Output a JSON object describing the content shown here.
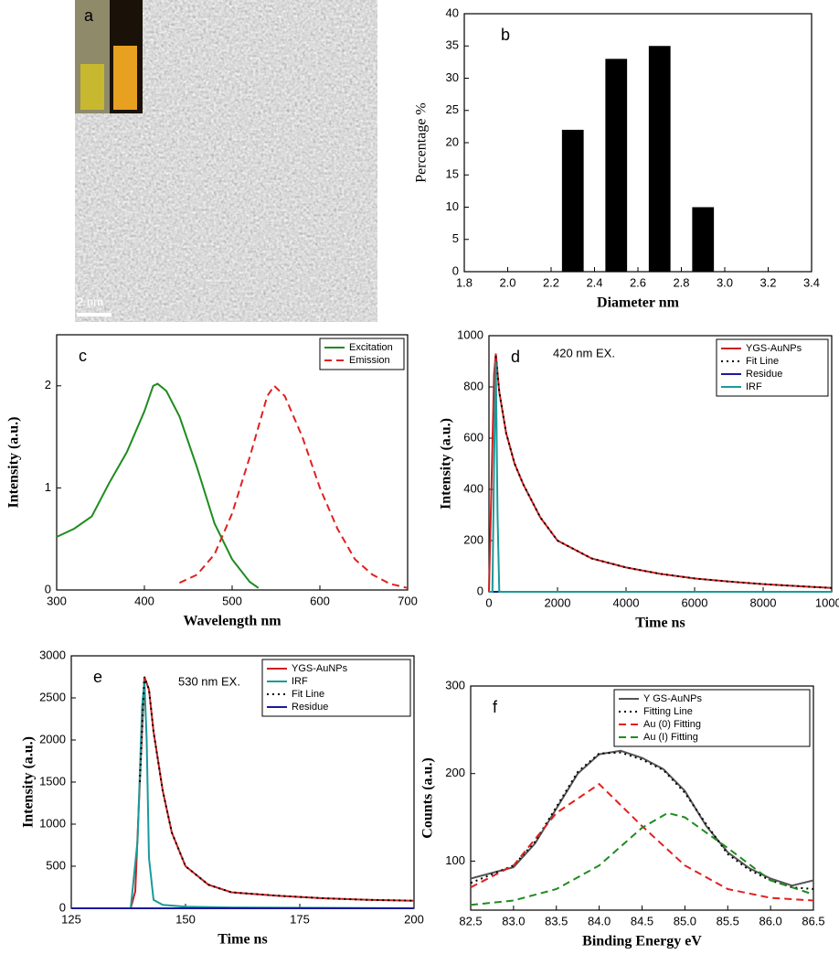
{
  "image_panel": {
    "label": "a",
    "scale_bar": "2 nm"
  },
  "chart_data": [
    {
      "type": "bar",
      "label": "b",
      "xlabel": "Diameter nm",
      "ylabel": "Percentage %",
      "x": [
        2.3,
        2.5,
        2.7,
        2.9
      ],
      "values": [
        22,
        33,
        35,
        10
      ],
      "color": "#000000",
      "xlim": [
        1.8,
        3.4
      ],
      "xticks": [
        1.8,
        {
          "value": 2,
          "label": "2.0"
        },
        2.2,
        2.4,
        2.6,
        2.8,
        {
          "value": 3,
          "label": "3.0"
        },
        3.2,
        3.4
      ],
      "ylim": [
        0,
        40
      ],
      "yticks": [
        0,
        5,
        10,
        15,
        20,
        25,
        30,
        35,
        40
      ]
    },
    {
      "type": "line",
      "label": "c",
      "xlabel": "Wavelength nm",
      "ylabel": "Intensity (a.u.)",
      "xlim": [
        300,
        700
      ],
      "xticks": [
        300,
        400,
        500,
        600,
        700
      ],
      "ylim": [
        0,
        2.5
      ],
      "yticks": [
        0,
        1,
        2
      ],
      "legend": "upper right",
      "series": [
        {
          "name": "Excitation",
          "color": "#1e8c1e",
          "style": "solid",
          "x": [
            300,
            320,
            340,
            360,
            380,
            400,
            410,
            415,
            425,
            440,
            460,
            480,
            500,
            520,
            530
          ],
          "values": [
            0.52,
            0.6,
            0.72,
            1.05,
            1.35,
            1.75,
            2.0,
            2.02,
            1.95,
            1.7,
            1.2,
            0.65,
            0.3,
            0.08,
            0.02
          ]
        },
        {
          "name": "Emission",
          "color": "#e02020",
          "style": "dashed",
          "x": [
            440,
            460,
            480,
            500,
            520,
            540,
            548,
            560,
            580,
            600,
            620,
            640,
            660,
            680,
            700
          ],
          "values": [
            0.07,
            0.15,
            0.35,
            0.75,
            1.3,
            1.9,
            2.0,
            1.9,
            1.5,
            1.0,
            0.6,
            0.3,
            0.15,
            0.06,
            0.02
          ]
        }
      ]
    },
    {
      "type": "line",
      "label": "d",
      "annotation": "420 nm EX.",
      "xlabel": "Time ns",
      "ylabel": "Intensity (a.u.)",
      "xlim": [
        0,
        10000
      ],
      "xticks": [
        0,
        2000,
        4000,
        6000,
        8000,
        10000
      ],
      "ylim": [
        0,
        1000
      ],
      "yticks": [
        0,
        200,
        400,
        600,
        800,
        1000
      ],
      "legend": "upper right",
      "series": [
        {
          "name": "YGS-AuNPs",
          "color": "#cc1f1f",
          "style": "solid",
          "x": [
            0,
            150,
            200,
            300,
            500,
            750,
            1000,
            1500,
            2000,
            3000,
            4000,
            5000,
            6000,
            7000,
            8000,
            9000,
            10000
          ],
          "values": [
            0,
            850,
            930,
            780,
            620,
            500,
            420,
            290,
            200,
            130,
            95,
            70,
            52,
            40,
            30,
            22,
            15
          ]
        },
        {
          "name": "Fit Line",
          "color": "#000000",
          "style": "dotted",
          "x": [
            200,
            300,
            500,
            750,
            1000,
            1500,
            2000,
            3000,
            4000,
            5000,
            6000,
            7000,
            8000,
            9000,
            10000
          ],
          "values": [
            920,
            780,
            620,
            500,
            420,
            290,
            200,
            130,
            95,
            70,
            52,
            40,
            30,
            22,
            15
          ]
        },
        {
          "name": "Residue",
          "color": "#1a1a99",
          "style": "solid",
          "x": [
            0,
            10000
          ],
          "values": [
            0,
            0
          ]
        },
        {
          "name": "IRF",
          "color": "#1a9a9a",
          "style": "solid",
          "x": [
            0,
            100,
            150,
            200,
            250,
            300,
            10000
          ],
          "values": [
            0,
            0,
            500,
            900,
            300,
            0,
            0
          ]
        }
      ]
    },
    {
      "type": "line",
      "label": "e",
      "annotation": "530 nm EX.",
      "xlabel": "Time ns",
      "ylabel": "Intensity (a.u.)",
      "xlim": [
        125,
        200
      ],
      "xticks": [
        125,
        150,
        175,
        200
      ],
      "ylim": [
        0,
        3000
      ],
      "yticks": [
        0,
        500,
        1000,
        1500,
        2000,
        2500,
        3000
      ],
      "legend": "upper right",
      "series": [
        {
          "name": "YGS-AuNPs",
          "color": "#cc1f1f",
          "style": "solid",
          "x": [
            125,
            138,
            139,
            140,
            141,
            142,
            143,
            145,
            147,
            150,
            155,
            160,
            170,
            180,
            190,
            200
          ],
          "values": [
            0,
            0,
            200,
            1500,
            2750,
            2600,
            2100,
            1400,
            900,
            500,
            280,
            190,
            150,
            120,
            100,
            90
          ]
        },
        {
          "name": "IRF",
          "color": "#1a9a9a",
          "style": "solid",
          "x": [
            138,
            139.5,
            140.5,
            141,
            141.5,
            142,
            143,
            145,
            150,
            160,
            200
          ],
          "values": [
            0,
            800,
            2400,
            2700,
            2000,
            600,
            100,
            40,
            20,
            10,
            0
          ]
        },
        {
          "name": "Fit Line",
          "color": "#000000",
          "style": "dotted",
          "x": [
            140,
            141,
            142,
            143,
            145,
            147,
            150,
            155,
            160,
            170,
            180,
            190,
            200
          ],
          "values": [
            1500,
            2750,
            2600,
            2100,
            1400,
            900,
            500,
            280,
            190,
            150,
            120,
            100,
            90
          ]
        },
        {
          "name": "Residue",
          "color": "#1a1a99",
          "style": "solid",
          "x": [
            125,
            200
          ],
          "values": [
            0,
            0
          ]
        }
      ]
    },
    {
      "type": "line",
      "label": "f",
      "xlabel": "Binding Energy eV",
      "ylabel": "Counts (a.u.)",
      "xlim": [
        82.5,
        86.5
      ],
      "xticks": [
        82.5,
        {
          "value": 83,
          "label": "83.0"
        },
        83.5,
        {
          "value": 84,
          "label": "84.0"
        },
        84.5,
        {
          "value": 85,
          "label": "85.0"
        },
        85.5,
        {
          "value": 86,
          "label": "86.0"
        },
        86.5
      ],
      "ylim": [
        44,
        300
      ],
      "yticks": [
        100,
        200,
        300
      ],
      "legend": "upper right",
      "series": [
        {
          "name": "Y GS-AuNPs",
          "color": "#555555",
          "style": "solid",
          "x": [
            82.5,
            83,
            83.25,
            83.5,
            83.75,
            84,
            84.25,
            84.5,
            84.75,
            85,
            85.25,
            85.5,
            85.75,
            86,
            86.25,
            86.5
          ],
          "values": [
            80,
            93,
            120,
            160,
            200,
            222,
            226,
            218,
            205,
            180,
            140,
            110,
            92,
            80,
            72,
            78
          ]
        },
        {
          "name": "Fitting Line",
          "color": "#000000",
          "style": "dotted",
          "x": [
            82.5,
            83,
            83.25,
            83.5,
            83.75,
            84,
            84.25,
            84.5,
            84.75,
            85,
            85.25,
            85.5,
            85.75,
            86,
            86.25,
            86.5
          ],
          "values": [
            75,
            95,
            122,
            162,
            202,
            223,
            224,
            216,
            204,
            178,
            142,
            108,
            90,
            78,
            70,
            68
          ]
        },
        {
          "name": "Au (0) Fitting",
          "color": "#e02020",
          "style": "dashed",
          "x": [
            82.5,
            83,
            83.5,
            84,
            84.5,
            85,
            85.5,
            86,
            86.5
          ],
          "values": [
            70,
            95,
            155,
            188,
            140,
            95,
            68,
            58,
            55
          ]
        },
        {
          "name": "Au (I) Fitting",
          "color": "#1e8c1e",
          "style": "dashed",
          "x": [
            82.5,
            83,
            83.5,
            84,
            84.5,
            84.8,
            85,
            85.5,
            86,
            86.5
          ],
          "values": [
            50,
            55,
            68,
            95,
            138,
            155,
            150,
            115,
            78,
            62
          ]
        }
      ]
    }
  ]
}
